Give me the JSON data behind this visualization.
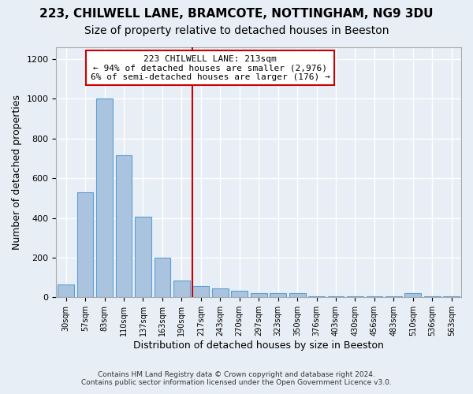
{
  "title_line1": "223, CHILWELL LANE, BRAMCOTE, NOTTINGHAM, NG9 3DU",
  "title_line2": "Size of property relative to detached houses in Beeston",
  "xlabel": "Distribution of detached houses by size in Beeston",
  "ylabel": "Number of detached properties",
  "footer_line1": "Contains HM Land Registry data © Crown copyright and database right 2024.",
  "footer_line2": "Contains public sector information licensed under the Open Government Licence v3.0.",
  "categories": [
    "30sqm",
    "57sqm",
    "83sqm",
    "110sqm",
    "137sqm",
    "163sqm",
    "190sqm",
    "217sqm",
    "243sqm",
    "270sqm",
    "297sqm",
    "323sqm",
    "350sqm",
    "376sqm",
    "403sqm",
    "430sqm",
    "456sqm",
    "483sqm",
    "510sqm",
    "536sqm",
    "563sqm"
  ],
  "values": [
    65,
    530,
    1000,
    715,
    405,
    200,
    85,
    55,
    45,
    35,
    20,
    20,
    20,
    5,
    5,
    5,
    5,
    5,
    20,
    5,
    5
  ],
  "bar_color": "#aac4e0",
  "bar_edge_color": "#5a9fd4",
  "ref_line_index": 7,
  "ref_line_color": "#cc0000",
  "annotation_box_text": "223 CHILWELL LANE: 213sqm\n← 94% of detached houses are smaller (2,976)\n6% of semi-detached houses are larger (176) →",
  "annotation_box_color": "#cc0000",
  "annotation_text_fontsize": 8,
  "background_color": "#e8eef5",
  "plot_bg_color": "#e8eef5",
  "ylim": [
    0,
    1260
  ],
  "yticks": [
    0,
    200,
    400,
    600,
    800,
    1000,
    1200
  ],
  "grid_color": "#ffffff",
  "title1_fontsize": 11,
  "title2_fontsize": 10,
  "xlabel_fontsize": 9,
  "ylabel_fontsize": 9
}
